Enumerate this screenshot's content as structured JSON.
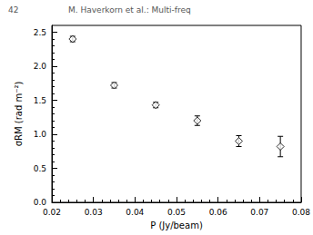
{
  "chart_data": {
    "type": "scatter",
    "title": "M. Haverkorn et al.: Multi-freq",
    "annotations": [
      "42"
    ],
    "x_label": "P (Jy/beam)",
    "y_label": "σRM (rad m⁻²)",
    "x": [
      0.025,
      0.035,
      0.045,
      0.055,
      0.065,
      0.075
    ],
    "values": [
      2.4,
      1.72,
      1.43,
      1.2,
      0.9,
      0.82
    ],
    "errors": [
      0.04,
      0.04,
      0.04,
      0.07,
      0.08,
      0.15
    ],
    "color": "#000000",
    "marker": "diamond",
    "xlim": [
      0.02,
      0.08
    ],
    "xticks": [
      0.02,
      0.03,
      0.04,
      0.05,
      0.06,
      0.07,
      0.08
    ],
    "ylim": [
      0,
      2.6
    ],
    "yticks": [
      {
        "value": 0,
        "label": "0.0"
      },
      {
        "value": 0.5,
        "label": "0.5"
      },
      {
        "value": 1,
        "label": "1.0"
      },
      {
        "value": 1.5,
        "label": "1.5"
      },
      {
        "value": 2,
        "label": "2.0"
      },
      {
        "value": 2.5,
        "label": "2.5"
      }
    ],
    "grid": false
  }
}
